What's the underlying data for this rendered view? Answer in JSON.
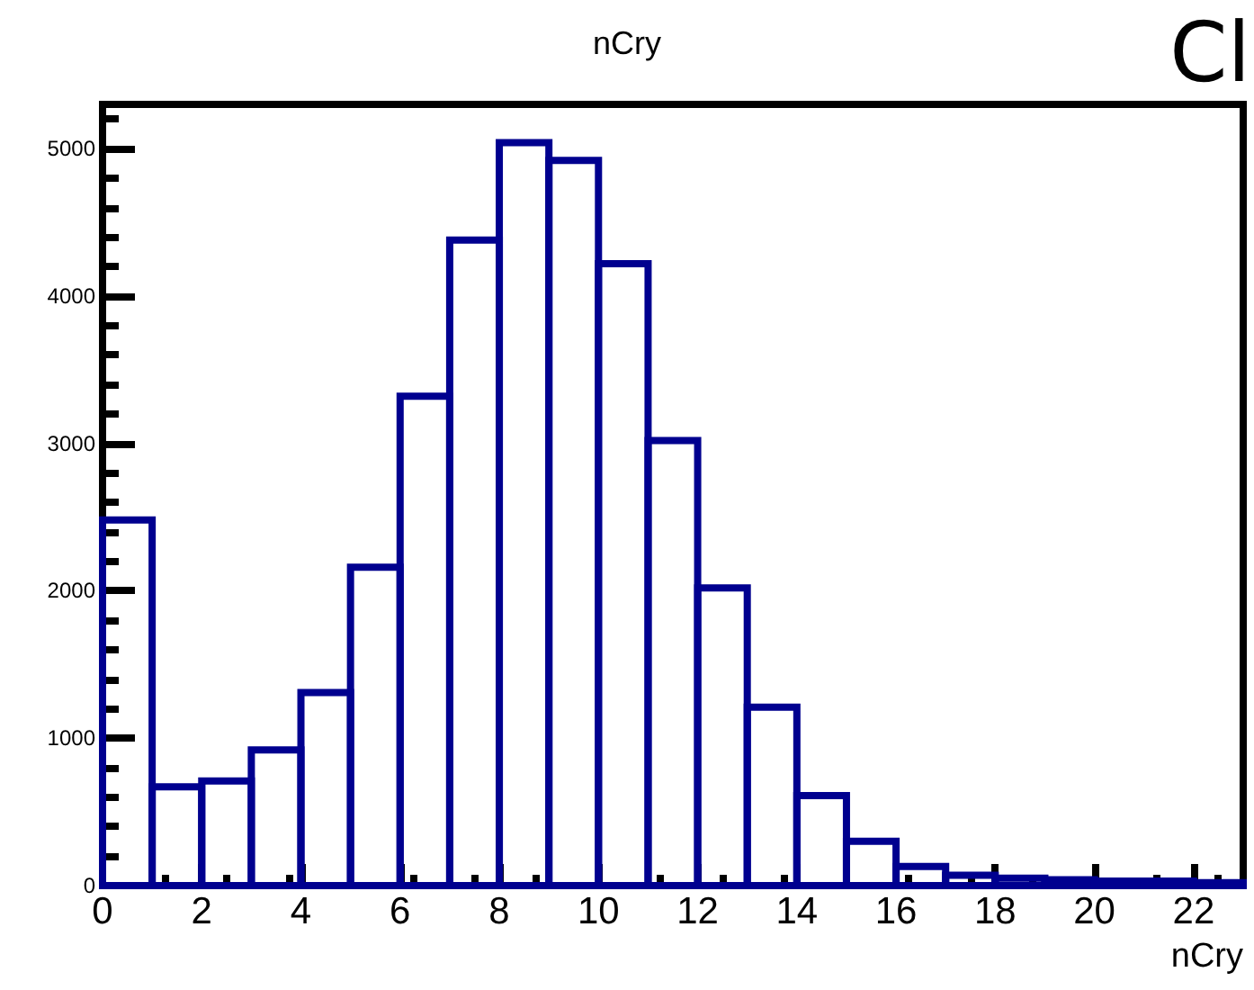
{
  "chart_data": {
    "type": "histogram",
    "title": "nCry",
    "xlabel": "nCry",
    "annotations": [
      "Cl"
    ],
    "bins": [
      0,
      1,
      2,
      3,
      4,
      5,
      6,
      7,
      8,
      9,
      10,
      11,
      12,
      13,
      14,
      15,
      16,
      17,
      18,
      19,
      20,
      21,
      22,
      23
    ],
    "values": [
      2480,
      670,
      710,
      920,
      1310,
      2160,
      3320,
      4380,
      5040,
      4920,
      4220,
      3020,
      2020,
      1210,
      610,
      300,
      130,
      70,
      50,
      40,
      30,
      30,
      20
    ],
    "color": "#00008f",
    "xlim": [
      0,
      23
    ],
    "xticks": [
      0,
      2,
      4,
      6,
      8,
      10,
      12,
      14,
      16,
      18,
      20,
      22
    ],
    "ylim": [
      0,
      5300
    ],
    "yticks": [
      0,
      1000,
      2000,
      3000,
      4000,
      5000
    ],
    "grid": false
  }
}
